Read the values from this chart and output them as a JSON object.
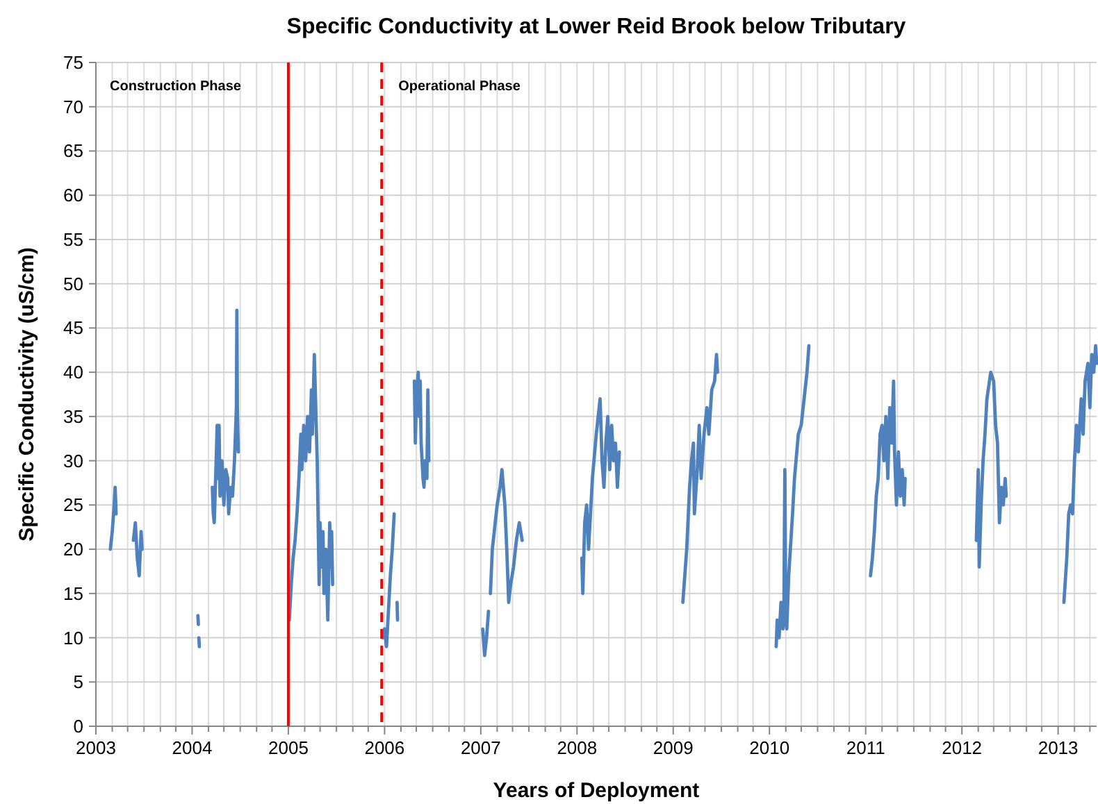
{
  "chart_data": {
    "type": "line",
    "title": "Specific Conductivity at Lower Reid Brook below Tributary",
    "xlabel": "Years of Deployment",
    "ylabel": "Specific Conductivity (uS/cm)",
    "x": [
      2003.15,
      2003.17,
      2003.19,
      2003.2,
      2003.21,
      2003.3,
      2003.39,
      2003.41,
      2003.43,
      2003.45,
      2003.47,
      2003.48,
      2003.8,
      2004.06,
      2004.065,
      2004.067,
      2004.07,
      2004.075,
      2004.15,
      2004.21,
      2004.22,
      2004.23,
      2004.25,
      2004.26,
      2004.27,
      2004.28,
      2004.29,
      2004.31,
      2004.33,
      2004.35,
      2004.37,
      2004.38,
      2004.4,
      2004.42,
      2004.44,
      2004.45,
      2004.46,
      2004.465,
      2004.47,
      2004.48,
      2004.7,
      2005.01,
      2005.03,
      2005.05,
      2005.07,
      2005.09,
      2005.11,
      2005.13,
      2005.14,
      2005.16,
      2005.18,
      2005.2,
      2005.22,
      2005.24,
      2005.25,
      2005.27,
      2005.3,
      2005.32,
      2005.33,
      2005.34,
      2005.36,
      2005.37,
      2005.39,
      2005.41,
      2005.43,
      2005.44,
      2005.45,
      2005.46,
      2005.7,
      2005.98,
      2006,
      2006.02,
      2006.04,
      2006.06,
      2006.08,
      2006.1,
      2006.12,
      2006.13,
      2006.135,
      2006.2,
      2006.31,
      2006.32,
      2006.33,
      2006.35,
      2006.36,
      2006.37,
      2006.38,
      2006.4,
      2006.41,
      2006.42,
      2006.44,
      2006.45,
      2006.46,
      2006.7,
      2007.02,
      2007.04,
      2007.06,
      2007.08,
      2007.09,
      2007.1,
      2007.12,
      2007.14,
      2007.17,
      2007.2,
      2007.22,
      2007.25,
      2007.27,
      2007.29,
      2007.31,
      2007.34,
      2007.37,
      2007.4,
      2007.43,
      2007.7,
      2008.05,
      2008.06,
      2008.08,
      2008.1,
      2008.12,
      2008.16,
      2008.2,
      2008.24,
      2008.26,
      2008.28,
      2008.3,
      2008.32,
      2008.34,
      2008.36,
      2008.38,
      2008.4,
      2008.42,
      2008.44,
      2008.7,
      2009.1,
      2009.14,
      2009.17,
      2009.19,
      2009.21,
      2009.22,
      2009.25,
      2009.27,
      2009.29,
      2009.32,
      2009.35,
      2009.37,
      2009.4,
      2009.43,
      2009.45,
      2009.46,
      2009.7,
      2010.07,
      2010.08,
      2010.1,
      2010.12,
      2010.14,
      2010.15,
      2010.16,
      2010.17,
      2010.18,
      2010.2,
      2010.24,
      2010.26,
      2010.3,
      2010.33,
      2010.36,
      2010.39,
      2010.41,
      2010.7,
      2011.05,
      2011.07,
      2011.09,
      2011.11,
      2011.13,
      2011.15,
      2011.17,
      2011.19,
      2011.21,
      2011.23,
      2011.25,
      2011.27,
      2011.29,
      2011.3,
      2011.32,
      2011.34,
      2011.36,
      2011.38,
      2011.4,
      2011.41,
      2011.7,
      2012.15,
      2012.17,
      2012.18,
      2012.2,
      2012.22,
      2012.24,
      2012.26,
      2012.3,
      2012.33,
      2012.35,
      2012.37,
      2012.39,
      2012.41,
      2012.43,
      2012.45,
      2012.46,
      2012.7,
      2013.06,
      2013.09,
      2013.11,
      2013.13,
      2013.15,
      2013.17,
      2013.19,
      2013.21,
      2013.24,
      2013.26,
      2013.28,
      2013.31,
      2013.33,
      2013.35,
      2013.37,
      2013.39,
      2013.4
    ],
    "series": [
      {
        "color": "#4f81bd",
        "values": [
          20,
          22,
          25,
          27,
          24,
          null,
          21,
          23,
          19,
          17,
          22,
          20,
          null,
          12.5,
          11.5,
          null,
          10,
          9,
          null,
          27,
          24,
          23,
          30,
          34,
          28,
          34,
          26,
          30,
          25,
          29,
          28,
          24,
          27,
          26,
          30,
          33,
          36,
          47,
          36,
          31,
          null,
          12,
          16,
          19,
          21,
          24,
          28,
          33,
          29,
          34,
          30,
          35,
          31,
          38,
          33,
          42,
          30,
          16,
          23,
          18,
          22,
          15,
          20,
          12,
          23,
          18,
          22,
          16,
          null,
          10,
          11,
          9,
          13,
          17,
          20,
          24,
          null,
          14,
          12,
          null,
          39,
          32,
          37,
          40,
          35,
          39,
          32,
          28,
          27,
          30,
          28,
          38,
          30,
          null,
          11,
          8,
          10,
          13,
          null,
          15,
          20,
          22,
          25,
          27,
          29,
          25,
          20,
          14,
          16,
          18,
          21,
          23,
          21,
          null,
          19,
          15,
          23,
          25,
          20,
          28,
          33,
          37,
          30,
          27,
          32,
          35,
          29,
          34,
          30,
          32,
          27,
          31,
          null,
          14,
          20,
          27,
          30,
          32,
          24,
          29,
          34,
          28,
          33,
          36,
          33,
          38,
          39,
          42,
          40,
          null,
          9,
          12,
          10,
          14,
          11,
          13,
          29,
          12,
          11,
          17,
          24,
          28,
          33,
          34,
          37,
          40,
          43,
          null,
          17,
          19,
          22,
          26,
          28,
          33,
          34,
          30,
          35,
          28,
          36,
          32,
          39,
          31,
          25,
          31,
          26,
          29,
          25,
          28,
          null,
          21,
          29,
          18,
          25,
          30,
          33,
          37,
          40,
          39,
          34,
          32,
          23,
          27,
          25,
          28,
          26,
          null,
          14,
          19,
          24,
          25,
          24,
          30,
          34,
          31,
          37,
          33,
          39,
          41,
          36,
          42,
          40,
          43,
          41
        ]
      }
    ],
    "xlim": [
      2003,
      2013.4
    ],
    "xticks": [
      2003,
      {
        "value": 2003.17,
        "label": null
      },
      {
        "value": 2003.33,
        "label": null
      },
      {
        "value": 2003.5,
        "label": null
      },
      {
        "value": 2003.67,
        "label": null
      },
      {
        "value": 2003.83,
        "label": null
      },
      2004,
      {
        "value": 2004.17,
        "label": null
      },
      {
        "value": 2004.33,
        "label": null
      },
      {
        "value": 2004.5,
        "label": null
      },
      {
        "value": 2004.67,
        "label": null
      },
      {
        "value": 2004.83,
        "label": null
      },
      2005,
      {
        "value": 2005.17,
        "label": null
      },
      {
        "value": 2005.33,
        "label": null
      },
      {
        "value": 2005.5,
        "label": null
      },
      {
        "value": 2005.67,
        "label": null
      },
      {
        "value": 2005.83,
        "label": null
      },
      2006,
      {
        "value": 2006.17,
        "label": null
      },
      {
        "value": 2006.33,
        "label": null
      },
      {
        "value": 2006.5,
        "label": null
      },
      {
        "value": 2006.67,
        "label": null
      },
      {
        "value": 2006.83,
        "label": null
      },
      2007,
      {
        "value": 2007.17,
        "label": null
      },
      {
        "value": 2007.33,
        "label": null
      },
      {
        "value": 2007.5,
        "label": null
      },
      {
        "value": 2007.67,
        "label": null
      },
      {
        "value": 2007.83,
        "label": null
      },
      2008,
      {
        "value": 2008.17,
        "label": null
      },
      {
        "value": 2008.33,
        "label": null
      },
      {
        "value": 2008.5,
        "label": null
      },
      {
        "value": 2008.67,
        "label": null
      },
      {
        "value": 2008.83,
        "label": null
      },
      2009,
      {
        "value": 2009.17,
        "label": null
      },
      {
        "value": 2009.33,
        "label": null
      },
      {
        "value": 2009.5,
        "label": null
      },
      {
        "value": 2009.67,
        "label": null
      },
      {
        "value": 2009.83,
        "label": null
      },
      2010,
      {
        "value": 2010.17,
        "label": null
      },
      {
        "value": 2010.33,
        "label": null
      },
      {
        "value": 2010.5,
        "label": null
      },
      {
        "value": 2010.67,
        "label": null
      },
      {
        "value": 2010.83,
        "label": null
      },
      2011,
      {
        "value": 2011.17,
        "label": null
      },
      {
        "value": 2011.33,
        "label": null
      },
      {
        "value": 2011.5,
        "label": null
      },
      {
        "value": 2011.67,
        "label": null
      },
      {
        "value": 2011.83,
        "label": null
      },
      2012,
      {
        "value": 2012.17,
        "label": null
      },
      {
        "value": 2012.33,
        "label": null
      },
      {
        "value": 2012.5,
        "label": null
      },
      {
        "value": 2012.67,
        "label": null
      },
      {
        "value": 2012.83,
        "label": null
      },
      2013,
      {
        "value": 2013.17,
        "label": null
      },
      {
        "value": 2013.33,
        "label": null
      }
    ],
    "ylim": [
      0,
      75
    ],
    "yticks": [
      0,
      5,
      10,
      15,
      20,
      25,
      30,
      35,
      40,
      45,
      50,
      55,
      60,
      65,
      70,
      75
    ],
    "grid": true,
    "line_style": "solid",
    "ref_lines": [
      {
        "axis": "x",
        "value": 2005,
        "color": "#ff0000",
        "line_style": "solid"
      },
      {
        "axis": "x",
        "value": 2005.97,
        "color": "#ff0000",
        "line_style": "dashed",
        "label": "Operational Phase"
      }
    ],
    "annotations": [
      "Construction Phase"
    ]
  }
}
